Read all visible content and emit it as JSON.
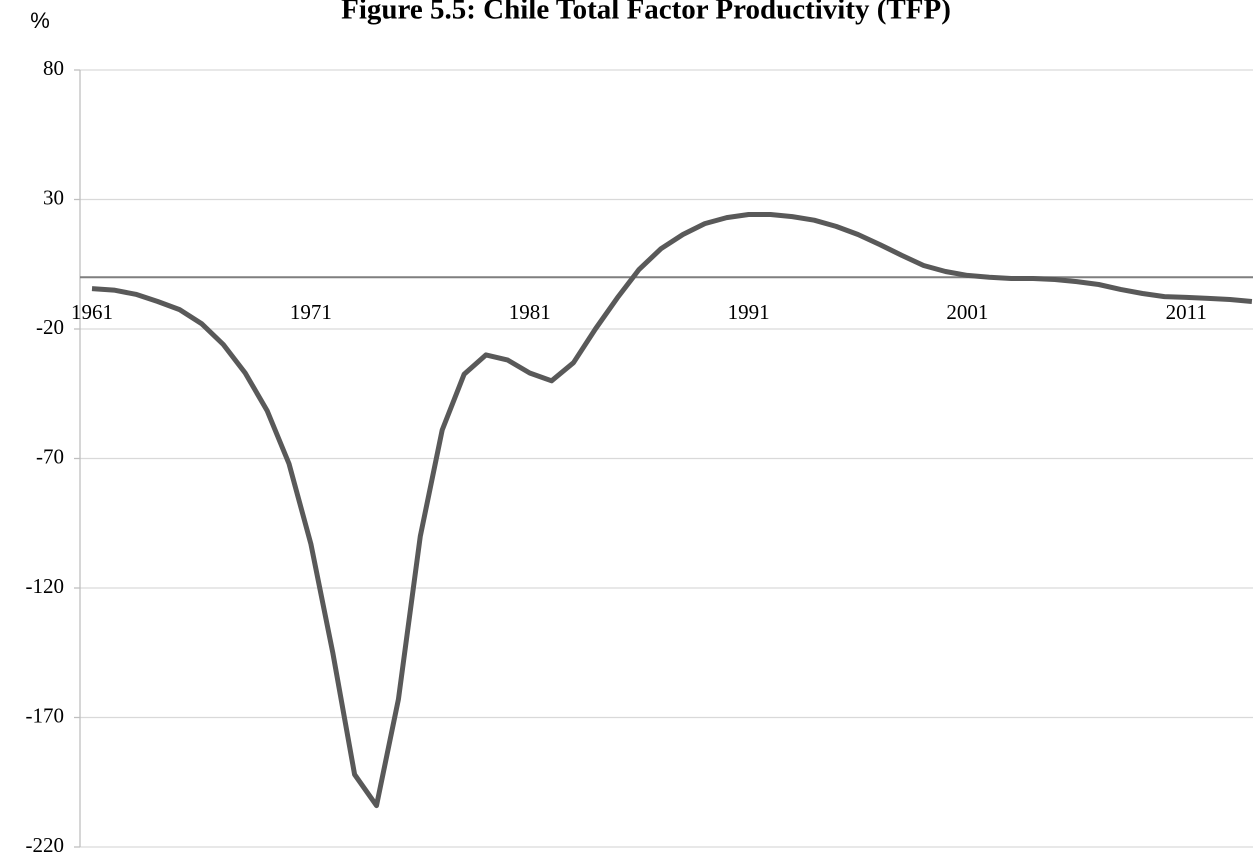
{
  "chart_data": {
    "type": "line",
    "title": "Figure 5.5: Chile Total Factor Productivity (TFP)",
    "y_label": "%",
    "x": [
      1961,
      1962,
      1963,
      1964,
      1965,
      1966,
      1967,
      1968,
      1969,
      1970,
      1971,
      1972,
      1973,
      1974,
      1975,
      1976,
      1977,
      1978,
      1979,
      1980,
      1981,
      1982,
      1983,
      1984,
      1985,
      1986,
      1987,
      1988,
      1989,
      1990,
      1991,
      1992,
      1993,
      1994,
      1995,
      1996,
      1997,
      1998,
      1999,
      2000,
      2001,
      2002,
      2003,
      2004,
      2005,
      2006,
      2007,
      2008,
      2009,
      2010,
      2011,
      2012,
      2013,
      2014
    ],
    "series": [
      {
        "name": "TFP",
        "color": "#595959",
        "values": [
          -4.4,
          -5,
          -6.6,
          -9.4,
          -12.5,
          -17.9,
          -26,
          -37,
          -51.5,
          -72,
          -103,
          -145,
          -192,
          -204,
          -163,
          -100,
          -59,
          -37.5,
          -30,
          -32,
          -37,
          -40,
          -33,
          -20,
          -8,
          3,
          11,
          16.5,
          20.7,
          23,
          24.2,
          24.2,
          23.4,
          22,
          19.6,
          16.5,
          12.6,
          8.4,
          4.5,
          2.2,
          0.7,
          0,
          -0.5,
          -0.5,
          -0.9,
          -1.7,
          -2.8,
          -4.7,
          -6.3,
          -7.5,
          -7.8,
          -8.2,
          -8.6,
          -9.4
        ]
      }
    ],
    "xlim": [
      1960.45,
      2014.05
    ],
    "xticks": [
      1961,
      1971,
      1981,
      1991,
      2001,
      2011
    ],
    "ylim": [
      -220,
      80
    ],
    "yticks": [
      80,
      30,
      -20,
      -70,
      -120,
      -170,
      -220
    ],
    "grid": true
  }
}
